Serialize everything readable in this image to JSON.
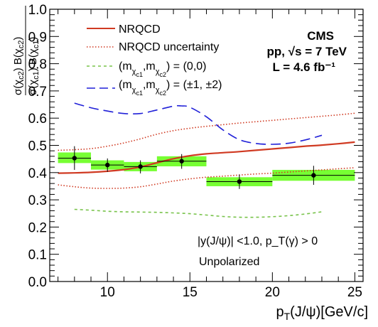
{
  "chart_data": {
    "type": "scatter",
    "title": "",
    "xlabel": "p_T(J/ψ)[GeV/c]",
    "ylabel": "σ(χc2) B(χc2) / σ(χc1) B(χc1)",
    "xlim": [
      6.5,
      25.5
    ],
    "ylim": [
      0.0,
      1.0
    ],
    "x_ticks": [
      10,
      15,
      20,
      25
    ],
    "y_ticks": [
      0.0,
      0.1,
      0.2,
      0.3,
      0.4,
      0.5,
      0.6,
      0.7,
      0.8,
      0.9,
      1.0
    ],
    "x_tick_labels": [
      "10",
      "15",
      "20",
      "25"
    ],
    "y_tick_labels": [
      "0.0",
      "0.1",
      "0.2",
      "0.3",
      "0.4",
      "0.5",
      "0.6",
      "0.7",
      "0.8",
      "0.9",
      "1.0"
    ],
    "grid": false,
    "legend_position": "top-left",
    "data_points": [
      {
        "x": 8.0,
        "y": 0.453,
        "x_err": [
          7.0,
          9.0
        ],
        "y_err": [
          0.41,
          0.497
        ],
        "box_y": [
          0.435,
          0.474
        ]
      },
      {
        "x": 10.0,
        "y": 0.428,
        "x_err": [
          9.0,
          11.0
        ],
        "y_err": [
          0.403,
          0.452
        ],
        "box_y": [
          0.411,
          0.445
        ]
      },
      {
        "x": 12.0,
        "y": 0.422,
        "x_err": [
          11.0,
          13.0
        ],
        "y_err": [
          0.397,
          0.445
        ],
        "box_y": [
          0.405,
          0.439
        ]
      },
      {
        "x": 14.5,
        "y": 0.442,
        "x_err": [
          13.0,
          16.0
        ],
        "y_err": [
          0.414,
          0.468
        ],
        "box_y": [
          0.423,
          0.46
        ]
      },
      {
        "x": 18.0,
        "y": 0.367,
        "x_err": [
          16.0,
          20.0
        ],
        "y_err": [
          0.34,
          0.393
        ],
        "box_y": [
          0.35,
          0.383
        ]
      },
      {
        "x": 22.5,
        "y": 0.39,
        "x_err": [
          20.0,
          25.0
        ],
        "y_err": [
          0.355,
          0.425
        ],
        "box_y": [
          0.37,
          0.41
        ]
      }
    ],
    "series": [
      {
        "name": "NRQCD",
        "color": "#d03a22",
        "style": "solid",
        "x": [
          7,
          8,
          9,
          10,
          11,
          12,
          13,
          14,
          15,
          16,
          17,
          18,
          19,
          20,
          21,
          22,
          23,
          24,
          25
        ],
        "y": [
          0.398,
          0.399,
          0.401,
          0.405,
          0.411,
          0.421,
          0.436,
          0.451,
          0.462,
          0.469,
          0.473,
          0.477,
          0.482,
          0.487,
          0.492,
          0.497,
          0.501,
          0.506,
          0.512
        ]
      },
      {
        "name": "NRQCD uncertainty",
        "color": "#d03a22",
        "style": "dotted",
        "x": [
          7,
          8,
          9,
          10,
          11,
          12,
          13,
          14,
          15,
          16,
          17,
          18,
          19,
          20,
          21,
          22,
          23,
          24,
          25
        ],
        "y": [
          0.482,
          0.484,
          0.488,
          0.497,
          0.509,
          0.524,
          0.541,
          0.554,
          0.563,
          0.57,
          0.576,
          0.582,
          0.587,
          0.592,
          0.597,
          0.602,
          0.607,
          0.612,
          0.618
        ]
      },
      {
        "name": "",
        "color": "#d03a22",
        "style": "dotted",
        "x": [
          7,
          8,
          9,
          10,
          11,
          12,
          13,
          14,
          15,
          16,
          17,
          18,
          19,
          20,
          21,
          22,
          23,
          24,
          25
        ],
        "y": [
          0.355,
          0.348,
          0.343,
          0.342,
          0.343,
          0.348,
          0.358,
          0.369,
          0.377,
          0.383,
          0.387,
          0.391,
          0.395,
          0.398,
          0.402,
          0.406,
          0.41,
          0.414,
          0.418
        ]
      },
      {
        "name": "(m_χc1, m_χc2) = (0,0)",
        "color": "#78c34a",
        "style": "short-dash",
        "x": [
          8,
          9,
          10,
          11,
          12,
          13,
          14,
          15,
          16,
          17,
          18,
          19,
          20,
          21,
          22,
          23
        ],
        "y": [
          0.265,
          0.262,
          0.258,
          0.256,
          0.255,
          0.254,
          0.252,
          0.249,
          0.244,
          0.239,
          0.236,
          0.236,
          0.238,
          0.242,
          0.248,
          0.256
        ]
      },
      {
        "name": "(m_χc1, m_χc2) = (±1, ±2)",
        "color": "#2020d8",
        "style": "long-dash",
        "x": [
          8,
          9,
          10,
          11,
          12,
          13,
          14,
          14.5,
          15,
          16,
          17,
          18,
          19,
          20,
          21,
          22,
          23
        ],
        "y": [
          0.655,
          0.638,
          0.626,
          0.617,
          0.617,
          0.63,
          0.644,
          0.645,
          0.64,
          0.605,
          0.557,
          0.521,
          0.507,
          0.504,
          0.508,
          0.52,
          0.537
        ]
      }
    ],
    "annotations": {
      "experiment": "CMS",
      "energy": "pp, √s = 7 TeV",
      "luminosity": "L = 4.6 fb⁻¹",
      "kinematic_cut": "|y(J/ψ)| <1.0, p_T(γ) > 0",
      "polarization": "Unpolarized"
    },
    "colors": {
      "stat_box": "#77ff33",
      "marker": "#000000"
    }
  }
}
